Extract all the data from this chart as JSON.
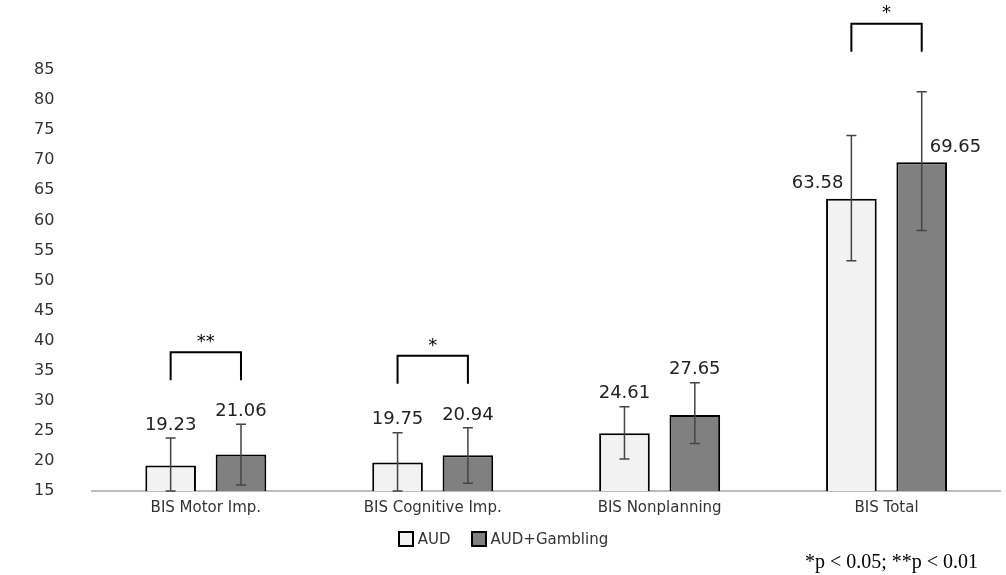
{
  "chart_data": {
    "type": "bar",
    "categories": [
      "BIS Motor Imp.",
      "BIS Cognitive Imp.",
      "BIS Nonplanning",
      "BIS Total"
    ],
    "series": [
      {
        "name": "AUD",
        "color": "#f2f2f2",
        "values": [
          19.23,
          19.75,
          24.61,
          63.58
        ],
        "errors": [
          [
            15,
            23.8
          ],
          [
            15,
            24.7
          ],
          [
            20.3,
            29.0
          ],
          [
            53.3,
            74.1
          ]
        ]
      },
      {
        "name": "AUD+Gambling",
        "color": "#808080",
        "values": [
          21.06,
          20.94,
          27.65,
          69.65
        ],
        "errors": [
          [
            16.0,
            26.1
          ],
          [
            16.3,
            25.5
          ],
          [
            22.9,
            33.0
          ],
          [
            58.3,
            81.4
          ]
        ]
      }
    ],
    "ylim": [
      15,
      85
    ],
    "yticks": [
      15,
      20,
      25,
      30,
      35,
      40,
      45,
      50,
      55,
      60,
      65,
      70,
      75,
      80,
      85
    ],
    "grid": false,
    "legend": "bottom",
    "data_labels": true,
    "annotations": [
      "**",
      "*",
      "*",
      "*p < 0.05; **p < 0.01"
    ]
  }
}
